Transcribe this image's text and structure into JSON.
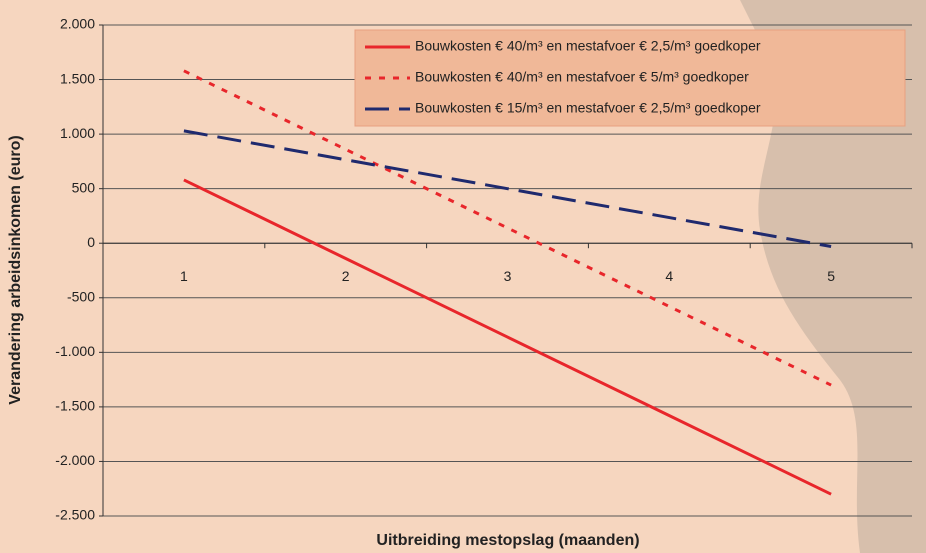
{
  "chart_data": {
    "type": "line",
    "x_label": "Uitbreiding mestopslag (maanden)",
    "y_label": "Verandering arbeidsinkomen (euro)",
    "categories": [
      "1",
      "2",
      "3",
      "4",
      "5"
    ],
    "series": [
      {
        "name": "Bouwkosten € 40/m³ en mestafvoer € 2,5/m³ goedkoper",
        "color": "#e8262b",
        "dash": "solid",
        "values": [
          580,
          -140,
          -860,
          -1580,
          -2300
        ]
      },
      {
        "name": "Bouwkosten € 40/m³ en mestafvoer € 5/m³ goedkoper",
        "color": "#e8262b",
        "dash": "dotted",
        "values": [
          1580,
          860,
          140,
          -580,
          -1300
        ]
      },
      {
        "name": "Bouwkosten € 15/m³ en mestafvoer € 2,5/m³ goedkoper",
        "color": "#1f2a6e",
        "dash": "dashed",
        "values": [
          1030,
          765,
          500,
          235,
          -30
        ]
      }
    ],
    "ylim": [
      -2500,
      2000
    ],
    "yticks": [
      {
        "value": 2000,
        "label": "2.000"
      },
      {
        "value": 1500,
        "label": "1.500"
      },
      {
        "value": 1000,
        "label": "1.000"
      },
      500,
      0,
      -500,
      {
        "value": -1000,
        "label": "-1.000"
      },
      {
        "value": -1500,
        "label": "-1.500"
      },
      {
        "value": -2000,
        "label": "-2.000"
      },
      {
        "value": -2500,
        "label": "-2.500"
      }
    ],
    "grid": true,
    "legend": "top-right"
  }
}
